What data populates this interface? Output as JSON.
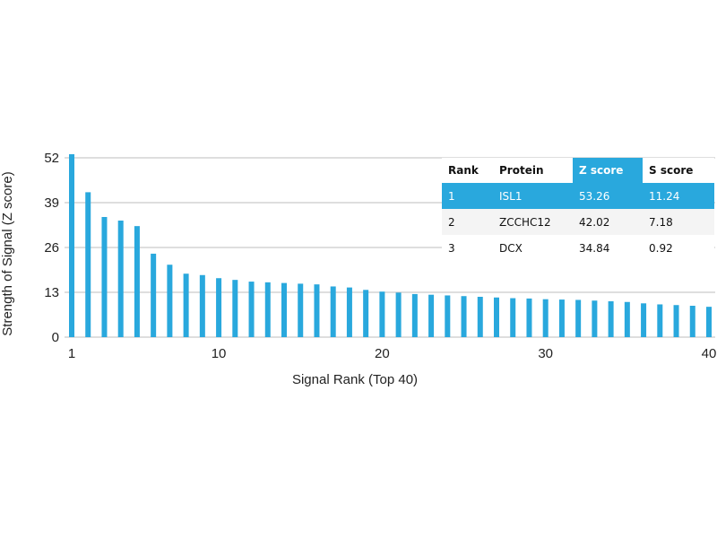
{
  "chart_data": {
    "type": "bar",
    "xlabel": "Signal Rank (Top 40)",
    "ylabel": "Strength of Signal (Z score)",
    "ylim": [
      0,
      52
    ],
    "yticks": [
      0,
      13,
      26,
      39,
      52
    ],
    "xlim": [
      1,
      40
    ],
    "xticks": [
      1,
      10,
      20,
      30,
      40
    ],
    "grid": true,
    "x": [
      1,
      2,
      3,
      4,
      5,
      6,
      7,
      8,
      9,
      10,
      11,
      12,
      13,
      14,
      15,
      16,
      17,
      18,
      19,
      20,
      21,
      22,
      23,
      24,
      25,
      26,
      27,
      28,
      29,
      30,
      31,
      32,
      33,
      34,
      35,
      36,
      37,
      38,
      39,
      40
    ],
    "values": [
      53.26,
      42.02,
      34.84,
      33.8,
      32.2,
      24.2,
      21.0,
      18.4,
      18.0,
      17.1,
      16.6,
      16.1,
      15.9,
      15.7,
      15.5,
      15.3,
      14.7,
      14.4,
      13.7,
      13.2,
      12.9,
      12.5,
      12.3,
      12.1,
      11.9,
      11.7,
      11.5,
      11.3,
      11.2,
      11.0,
      10.9,
      10.8,
      10.6,
      10.4,
      10.2,
      9.8,
      9.5,
      9.3,
      9.1,
      8.8
    ],
    "bar_color": "#29a8dd"
  },
  "table": {
    "headers": [
      "Rank",
      "Protein",
      "Z score",
      "S score"
    ],
    "rows": [
      [
        "1",
        "ISL1",
        "53.26",
        "11.24"
      ],
      [
        "2",
        "ZCCHC12",
        "42.02",
        "7.18"
      ],
      [
        "3",
        "DCX",
        "34.84",
        "0.92"
      ]
    ],
    "highlight_color": "#29a8dd"
  }
}
